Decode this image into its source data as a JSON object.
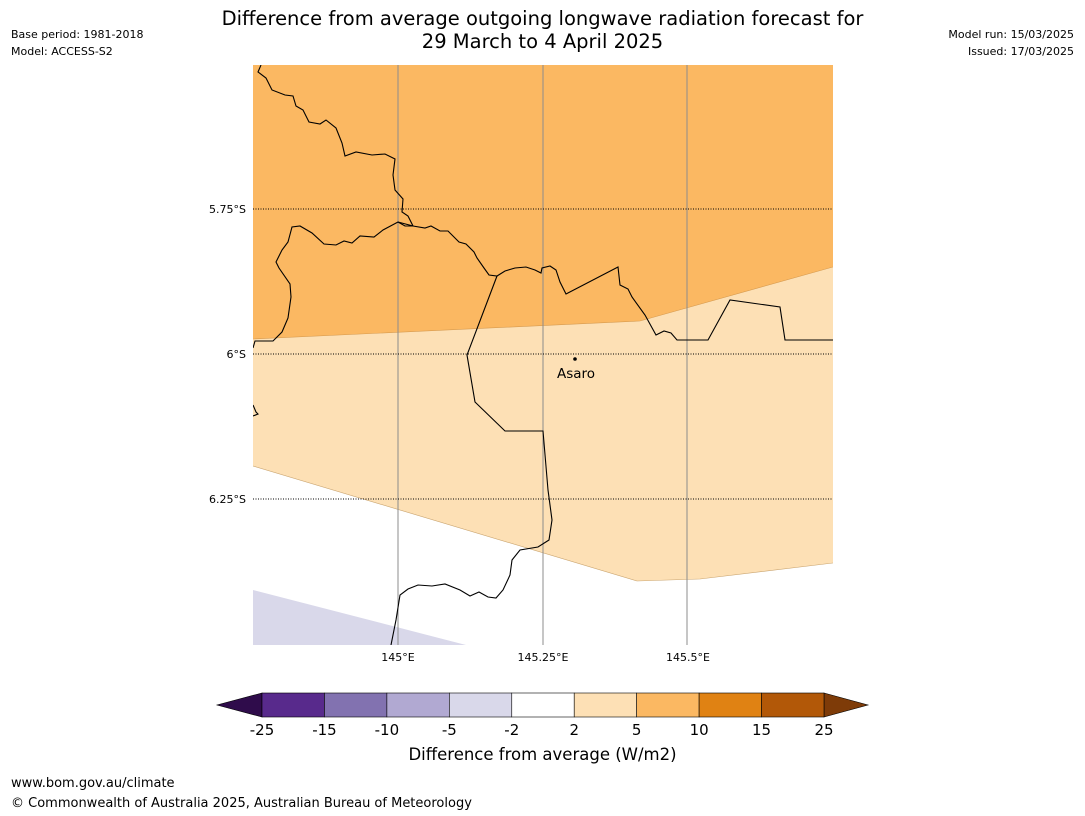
{
  "header": {
    "title_line1": "Difference from average outgoing longwave radiation forecast for",
    "title_line2": "29 March to 4 April 2025",
    "base_period": "Base period: 1981-2018",
    "model": "Model: ACCESS-S2",
    "model_run": "Model run: 15/03/2025",
    "issued": "Issued: 17/03/2025"
  },
  "map": {
    "latitude_labels": [
      "5.75°S",
      "6°S",
      "6.25°S"
    ],
    "longitude_labels": [
      "145°E",
      "145.25°E",
      "145.5°E"
    ],
    "place": {
      "name": "Asaro"
    },
    "category_colors": {
      "5 to 10": "#fbb862",
      "2 to 5": "#fde0b5",
      "-2 to 2": "#ffffff",
      "-5 to -2": "#d9d8ea"
    }
  },
  "colorbar": {
    "title": "Difference from average (W/m2)",
    "ticks": [
      "-25",
      "-15",
      "-10",
      "-5",
      "-2",
      "2",
      "5",
      "10",
      "15",
      "25"
    ],
    "colors": [
      "#582a8c",
      "#8272b0",
      "#b1a9d2",
      "#d9d8ea",
      "#ffffff",
      "#fde0b5",
      "#fbb862",
      "#e08213",
      "#b25808"
    ],
    "under_color": "#2f0c4b",
    "over_color": "#7e3b08",
    "extend": "both"
  },
  "footer": {
    "website": "www.bom.gov.au/climate",
    "copyright": "© Commonwealth of Australia 2025, Australian Bureau of Meteorology"
  }
}
